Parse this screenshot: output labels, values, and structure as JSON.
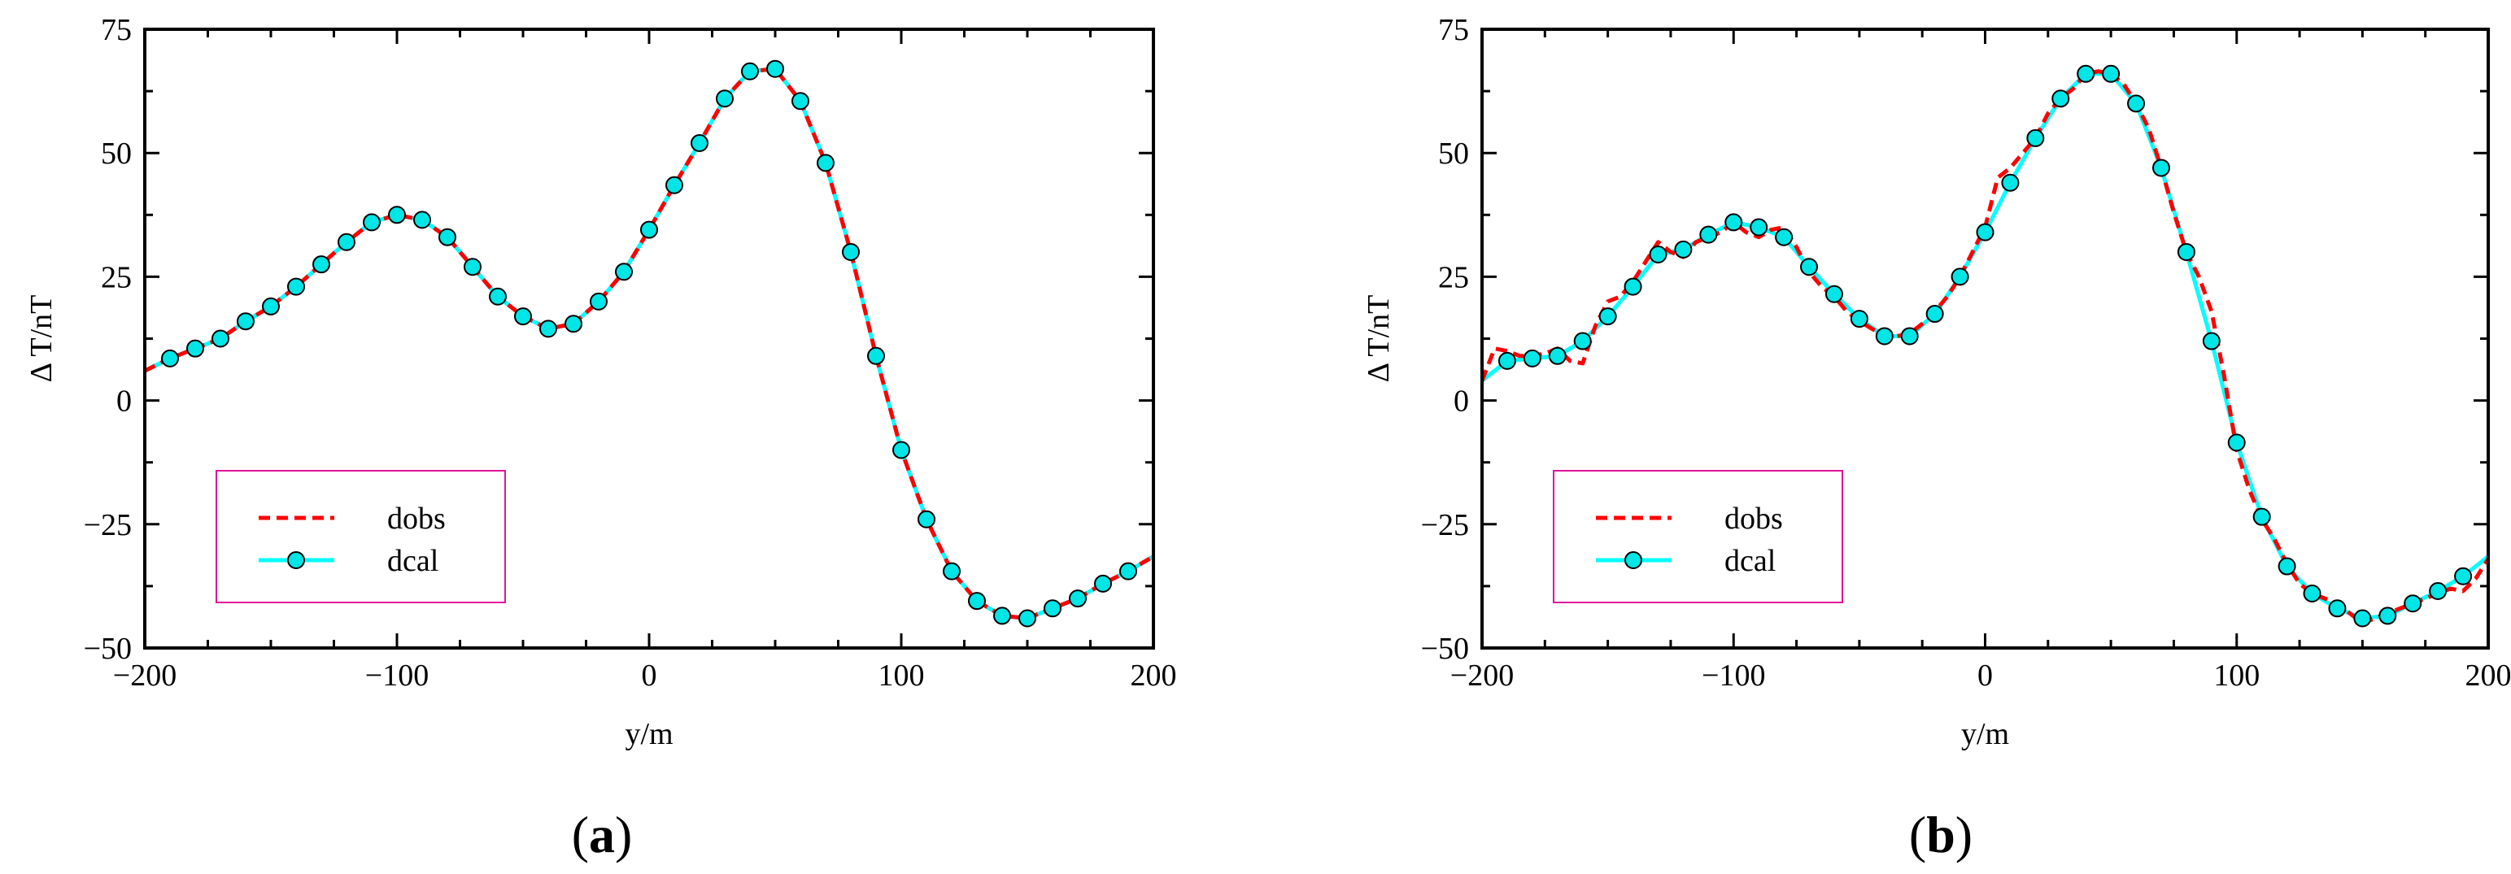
{
  "chart_data": [
    {
      "type": "line",
      "panel_label": {
        "open": "(",
        "letter": "a",
        "close": ")"
      },
      "xlabel": "y/m",
      "ylabel": "Δ T/nT",
      "xlim": [
        -200,
        200
      ],
      "ylim": [
        -50,
        75
      ],
      "xticks": [
        -200,
        -100,
        0,
        100,
        200
      ],
      "xtick_labels": [
        "−200",
        "−100",
        "0",
        "100",
        "200"
      ],
      "yticks": [
        -50,
        -25,
        0,
        25,
        50,
        75
      ],
      "ytick_labels": [
        "−50",
        "−25",
        "0",
        "25",
        "50",
        "75"
      ],
      "legend": {
        "position": "lower-left",
        "entries": [
          "dobs",
          "dcal"
        ]
      },
      "series": [
        {
          "name": "dobs",
          "style": "dashed",
          "color": "#ff0000",
          "x": [
            -200,
            -190,
            -180,
            -170,
            -160,
            -150,
            -140,
            -130,
            -120,
            -110,
            -100,
            -90,
            -80,
            -70,
            -60,
            -50,
            -40,
            -30,
            -20,
            -10,
            0,
            10,
            20,
            30,
            40,
            50,
            60,
            70,
            80,
            90,
            100,
            110,
            120,
            130,
            140,
            150,
            160,
            170,
            180,
            190,
            200
          ],
          "y": [
            6,
            8.5,
            10.5,
            12.5,
            16,
            19,
            23,
            27.5,
            32,
            36,
            37.5,
            36.5,
            33,
            27,
            21,
            17,
            14.5,
            15.5,
            20,
            26,
            34.5,
            43.5,
            52,
            61,
            66.5,
            67,
            60.5,
            48,
            30,
            9,
            -10,
            -24,
            -34.5,
            -40.5,
            -43.5,
            -44,
            -42,
            -40,
            -37,
            -34.5,
            -31.5
          ]
        },
        {
          "name": "dcal",
          "style": "solid-markers",
          "color": "#00ffff",
          "x": [
            -200,
            -190,
            -180,
            -170,
            -160,
            -150,
            -140,
            -130,
            -120,
            -110,
            -100,
            -90,
            -80,
            -70,
            -60,
            -50,
            -40,
            -30,
            -20,
            -10,
            0,
            10,
            20,
            30,
            40,
            50,
            60,
            70,
            80,
            90,
            100,
            110,
            120,
            130,
            140,
            150,
            160,
            170,
            180,
            190,
            200
          ],
          "y": [
            6,
            8.5,
            10.5,
            12.5,
            16,
            19,
            23,
            27.5,
            32,
            36,
            37.5,
            36.5,
            33,
            27,
            21,
            17,
            14.5,
            15.5,
            20,
            26,
            34.5,
            43.5,
            52,
            61,
            66.5,
            67,
            60.5,
            48,
            30,
            9,
            -10,
            -24,
            -34.5,
            -40.5,
            -43.5,
            -44,
            -42,
            -40,
            -37,
            -34.5,
            -31.5
          ]
        }
      ]
    },
    {
      "type": "line",
      "panel_label": {
        "open": "(",
        "letter": "b",
        "close": ")"
      },
      "xlabel": "y/m",
      "ylabel": "Δ T/nT",
      "xlim": [
        -200,
        200
      ],
      "ylim": [
        -50,
        75
      ],
      "xticks": [
        -200,
        -100,
        0,
        100,
        200
      ],
      "xtick_labels": [
        "−200",
        "−100",
        "0",
        "100",
        "200"
      ],
      "yticks": [
        -50,
        -25,
        0,
        25,
        50,
        75
      ],
      "ytick_labels": [
        "−50",
        "−25",
        "0",
        "25",
        "50",
        "75"
      ],
      "legend": {
        "position": "lower-left",
        "entries": [
          "dobs",
          "dcal"
        ]
      },
      "series": [
        {
          "name": "dobs",
          "style": "dashed",
          "color": "#ff0000",
          "x": [
            -200,
            -195,
            -190,
            -185,
            -180,
            -175,
            -170,
            -165,
            -160,
            -155,
            -150,
            -145,
            -140,
            -135,
            -130,
            -125,
            -120,
            -115,
            -110,
            -105,
            -100,
            -95,
            -90,
            -85,
            -80,
            -75,
            -70,
            -65,
            -60,
            -55,
            -50,
            -45,
            -40,
            -35,
            -30,
            -25,
            -20,
            -15,
            -10,
            -5,
            0,
            5,
            10,
            15,
            20,
            25,
            30,
            35,
            40,
            45,
            50,
            55,
            60,
            65,
            70,
            75,
            80,
            85,
            90,
            95,
            100,
            105,
            110,
            115,
            120,
            125,
            130,
            135,
            140,
            145,
            150,
            155,
            160,
            165,
            170,
            175,
            180,
            185,
            190,
            195,
            200
          ],
          "y": [
            4,
            10.5,
            10,
            9,
            9,
            9.5,
            10.5,
            8,
            7.5,
            15,
            20,
            21,
            24,
            28,
            32,
            30,
            29,
            32,
            33,
            34,
            36,
            34,
            33,
            34.5,
            35,
            31,
            26,
            23,
            21,
            18,
            16,
            14.5,
            13,
            13,
            13.5,
            15.5,
            18,
            21,
            25,
            30,
            35,
            45,
            47,
            50,
            53,
            58,
            61,
            63,
            66,
            66.5,
            66,
            64,
            60,
            55,
            47,
            38,
            30,
            25,
            18,
            5,
            -10,
            -18,
            -24,
            -28,
            -33,
            -37,
            -39,
            -40,
            -41,
            -43,
            -45,
            -44,
            -43,
            -42,
            -41,
            -40,
            -39,
            -38,
            -38.5,
            -36,
            -32
          ]
        },
        {
          "name": "dcal",
          "style": "solid-markers",
          "color": "#00ffff",
          "x": [
            -200,
            -190,
            -180,
            -170,
            -160,
            -150,
            -140,
            -130,
            -120,
            -110,
            -100,
            -90,
            -80,
            -70,
            -60,
            -50,
            -40,
            -30,
            -20,
            -10,
            0,
            10,
            20,
            30,
            40,
            50,
            60,
            70,
            80,
            90,
            100,
            110,
            120,
            130,
            140,
            150,
            160,
            170,
            180,
            190,
            200
          ],
          "y": [
            4,
            8,
            8.5,
            9,
            12,
            17,
            23,
            29.5,
            30.5,
            33.5,
            36,
            35,
            33,
            27,
            21.5,
            16.5,
            13,
            13,
            17.5,
            25,
            34,
            44,
            53,
            61,
            66,
            66,
            60,
            47,
            30,
            12,
            -8.5,
            -23.5,
            -33.5,
            -39,
            -42,
            -44,
            -43.5,
            -41,
            -38.5,
            -35.5,
            -31.5
          ]
        }
      ]
    }
  ]
}
